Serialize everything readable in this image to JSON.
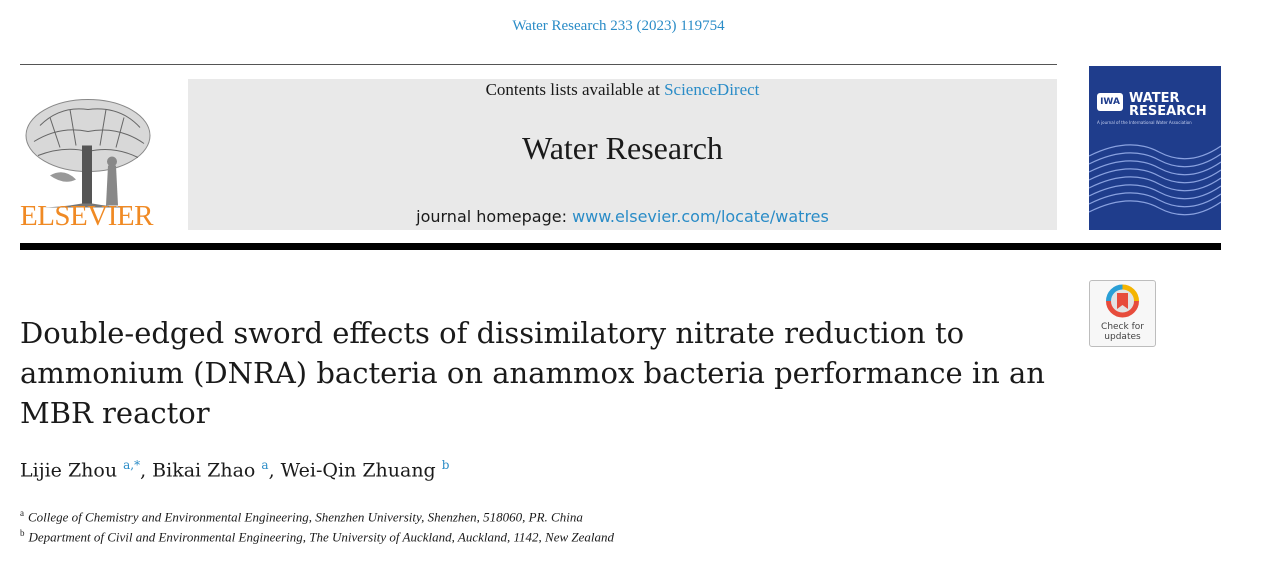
{
  "header": {
    "citation": "Water Research 233 (2023) 119754",
    "contents_prefix": "Contents lists available at ",
    "contents_link": "ScienceDirect",
    "journal_name": "Water Research",
    "homepage_prefix": "journal homepage: ",
    "homepage_link": "www.elsevier.com/locate/watres",
    "publisher_logo_text": "ELSEVIER"
  },
  "cover": {
    "badge": "IWA",
    "title_line1": "WATER",
    "title_line2": "RESEARCH",
    "subtitle": "A journal of the International Water Association"
  },
  "check_updates": {
    "line1": "Check for",
    "line2": "updates"
  },
  "article": {
    "title_line1": "Double-edged sword effects of dissimilatory nitrate reduction to",
    "title_line2": "ammonium (DNRA) bacteria on anammox bacteria performance in an",
    "title_line3": "MBR reactor",
    "authors": [
      {
        "name": "Lijie Zhou",
        "sup": "a,*",
        "sep": ", "
      },
      {
        "name": "Bikai Zhao",
        "sup": "a",
        "sep": ", "
      },
      {
        "name": "Wei-Qin Zhuang",
        "sup": "b",
        "sep": ""
      }
    ],
    "affiliations": [
      {
        "mark": "a",
        "text": "College of Chemistry and Environmental Engineering, Shenzhen University, Shenzhen, 518060, PR. China"
      },
      {
        "mark": "b",
        "text": "Department of Civil and Environmental Engineering, The University of Auckland, Auckland, 1142, New Zealand"
      }
    ]
  },
  "colors": {
    "link": "#2a8cc7",
    "publisher_orange": "#f08a24",
    "cover_blue": "#1f3d8c",
    "panel_grey": "#e9e9e9"
  }
}
